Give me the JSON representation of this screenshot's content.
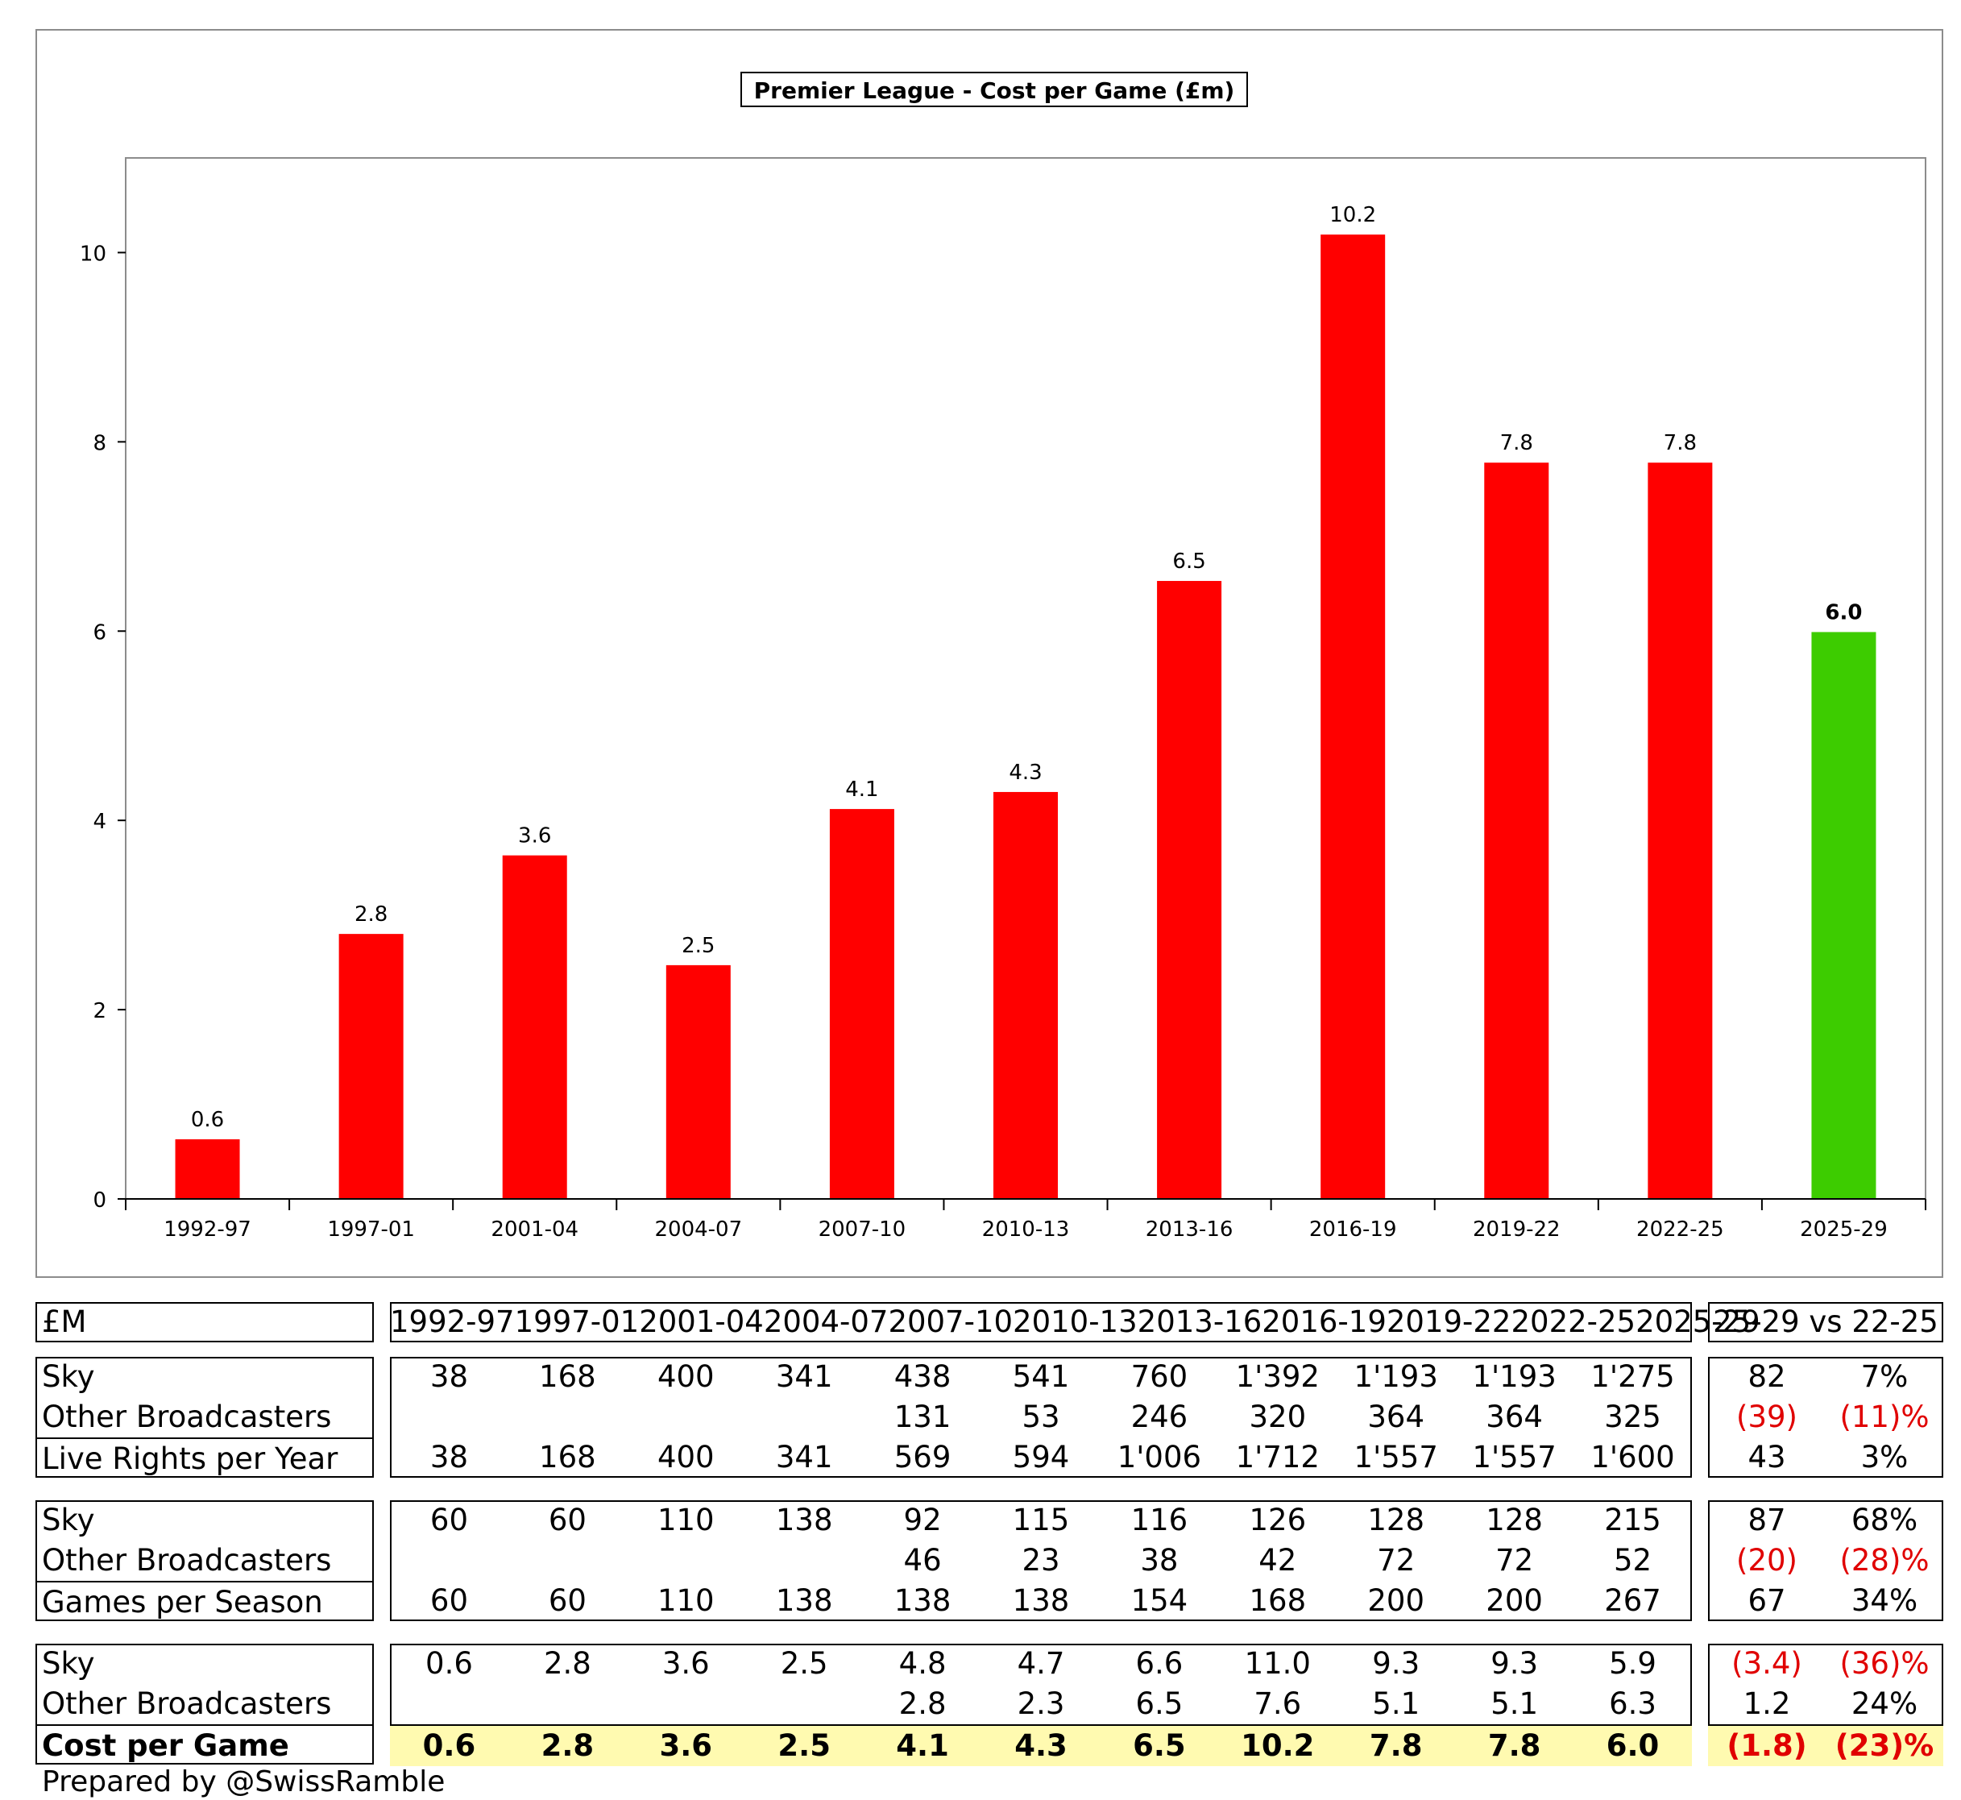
{
  "chart_data": {
    "type": "bar",
    "title": "Premier League - Cost per Game (£m)",
    "categories": [
      "1992-97",
      "1997-01",
      "2001-04",
      "2004-07",
      "2007-10",
      "2010-13",
      "2013-16",
      "2016-19",
      "2019-22",
      "2022-25",
      "2025-29"
    ],
    "values": [
      0.63,
      2.8,
      3.63,
      2.47,
      4.12,
      4.3,
      6.53,
      10.19,
      7.78,
      7.78,
      5.99
    ],
    "data_labels": [
      "0.6",
      "2.8",
      "3.6",
      "2.5",
      "4.1",
      "4.3",
      "6.5",
      "10.2",
      "7.8",
      "7.8",
      "6.0"
    ],
    "bar_colors": [
      "#ff0000",
      "#ff0000",
      "#ff0000",
      "#ff0000",
      "#ff0000",
      "#ff0000",
      "#ff0000",
      "#ff0000",
      "#ff0000",
      "#ff0000",
      "#3dcc00"
    ],
    "y_ticks": [
      "0",
      "2",
      "4",
      "6",
      "8",
      "10"
    ],
    "ylim": [
      0,
      11
    ],
    "xlabel": "",
    "ylabel": "",
    "grid": false
  },
  "table": {
    "corner_label": "£M",
    "periods": [
      "1992-97",
      "1997-01",
      "2001-04",
      "2004-07",
      "2007-10",
      "2010-13",
      "2013-16",
      "2016-19",
      "2019-22",
      "2022-25",
      "2025-29"
    ],
    "compare_header": "25-29 vs 22-25",
    "sections": [
      {
        "rows": [
          {
            "label": "Sky",
            "values": [
              "38",
              "168",
              "400",
              "341",
              "438",
              "541",
              "760",
              "1'392",
              "1'193",
              "1'193",
              "1'275"
            ],
            "diff": "82",
            "pct": "7%",
            "diff_red": false
          },
          {
            "label": "Other Broadcasters",
            "values": [
              "",
              "",
              "",
              "",
              "131",
              "53",
              "246",
              "320",
              "364",
              "364",
              "325"
            ],
            "diff": "(39)",
            "pct": "(11)%",
            "diff_red": true
          },
          {
            "label": "Live Rights per Year",
            "values": [
              "38",
              "168",
              "400",
              "341",
              "569",
              "594",
              "1'006",
              "1'712",
              "1'557",
              "1'557",
              "1'600"
            ],
            "diff": "43",
            "pct": "3%",
            "diff_red": false
          }
        ]
      },
      {
        "rows": [
          {
            "label": "Sky",
            "values": [
              "60",
              "60",
              "110",
              "138",
              "92",
              "115",
              "116",
              "126",
              "128",
              "128",
              "215"
            ],
            "diff": "87",
            "pct": "68%",
            "diff_red": false
          },
          {
            "label": "Other Broadcasters",
            "values": [
              "",
              "",
              "",
              "",
              "46",
              "23",
              "38",
              "42",
              "72",
              "72",
              "52"
            ],
            "diff": "(20)",
            "pct": "(28)%",
            "diff_red": true
          },
          {
            "label": "Games per Season",
            "values": [
              "60",
              "60",
              "110",
              "138",
              "138",
              "138",
              "154",
              "168",
              "200",
              "200",
              "267"
            ],
            "diff": "67",
            "pct": "34%",
            "diff_red": false
          }
        ]
      },
      {
        "rows": [
          {
            "label": "Sky",
            "values": [
              "0.6",
              "2.8",
              "3.6",
              "2.5",
              "4.8",
              "4.7",
              "6.6",
              "11.0",
              "9.3",
              "9.3",
              "5.9"
            ],
            "diff": "(3.4)",
            "pct": "(36)%",
            "diff_red": true
          },
          {
            "label": "Other Broadcasters",
            "values": [
              "",
              "",
              "",
              "",
              "2.8",
              "2.3",
              "6.5",
              "7.6",
              "5.1",
              "5.1",
              "6.3"
            ],
            "diff": "1.2",
            "pct": "24%",
            "diff_red": false
          },
          {
            "label": "Cost per Game",
            "values": [
              "0.6",
              "2.8",
              "3.6",
              "2.5",
              "4.1",
              "4.3",
              "6.5",
              "10.2",
              "7.8",
              "7.8",
              "6.0"
            ],
            "diff": "(1.8)",
            "pct": "(23)%",
            "diff_red": true
          }
        ]
      }
    ]
  },
  "credit": "Prepared by @SwissRamble"
}
